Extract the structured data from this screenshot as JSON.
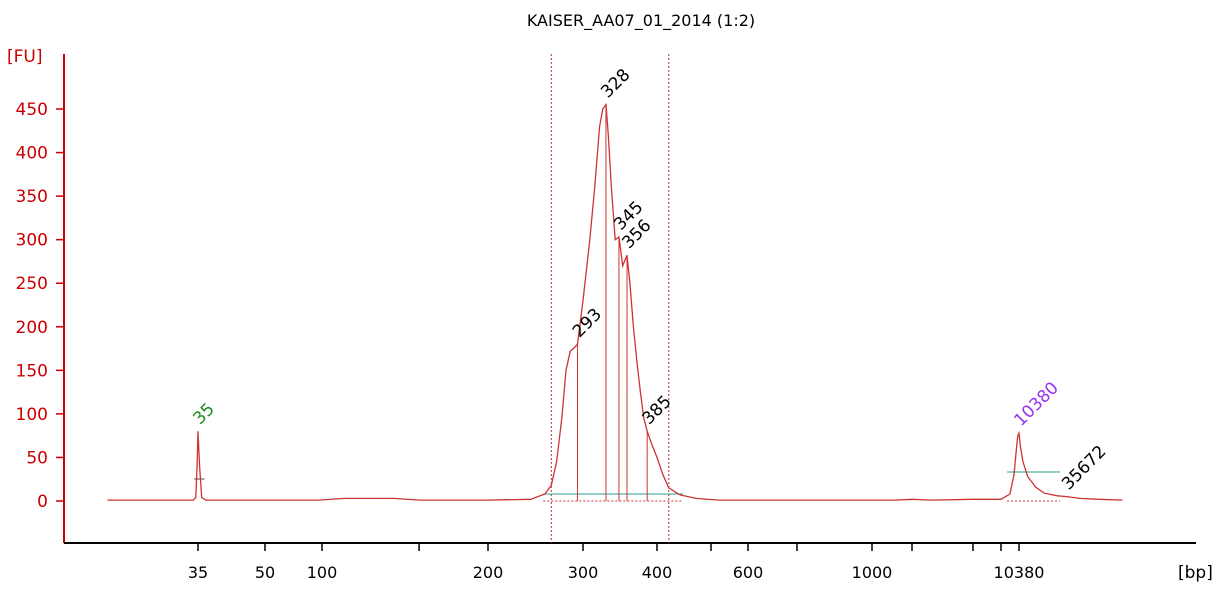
{
  "chart_data": {
    "type": "line",
    "title": "KAISER_AA07_01_2014 (1:2)",
    "ylabel": "[FU]",
    "xlabel": "[bp]",
    "ylim": [
      -45,
      480
    ],
    "yticks": [
      0,
      50,
      100,
      150,
      200,
      250,
      300,
      350,
      400,
      450
    ],
    "xticks": [
      {
        "label": "35",
        "value": 35
      },
      {
        "label": "50",
        "value": 50
      },
      {
        "label": "100",
        "value": 100
      },
      {
        "label": "",
        "value": 150
      },
      {
        "label": "200",
        "value": 200
      },
      {
        "label": "300",
        "value": 300
      },
      {
        "label": "400",
        "value": 400
      },
      {
        "label": "",
        "value": 500
      },
      {
        "label": "600",
        "value": 600
      },
      {
        "label": "",
        "value": 700
      },
      {
        "label": "1000",
        "value": 1000
      },
      {
        "label": "",
        "value": 2000
      },
      {
        "label": "",
        "value": 4000
      },
      {
        "label": "",
        "value": 7000
      },
      {
        "label": "10380",
        "value": 10380
      }
    ],
    "series": [
      {
        "color": "#cc3333",
        "points": [
          [
            15,
            1
          ],
          [
            30,
            1
          ],
          [
            33.5,
            1
          ],
          [
            34.3,
            4
          ],
          [
            34.7,
            40
          ],
          [
            35,
            80
          ],
          [
            35.3,
            40
          ],
          [
            35.7,
            4
          ],
          [
            36.5,
            1
          ],
          [
            60,
            1
          ],
          [
            95,
            1
          ],
          [
            110,
            3
          ],
          [
            135,
            3
          ],
          [
            150,
            1
          ],
          [
            200,
            1
          ],
          [
            240,
            2
          ],
          [
            255,
            8
          ],
          [
            262,
            18
          ],
          [
            268,
            45
          ],
          [
            274,
            95
          ],
          [
            279,
            150
          ],
          [
            284,
            172
          ],
          [
            288,
            175
          ],
          [
            293,
            180
          ],
          [
            300,
            230
          ],
          [
            308,
            300
          ],
          [
            314,
            360
          ],
          [
            320,
            430
          ],
          [
            324,
            450
          ],
          [
            328,
            455
          ],
          [
            331,
            420
          ],
          [
            335,
            360
          ],
          [
            340,
            300
          ],
          [
            345,
            303
          ],
          [
            350,
            270
          ],
          [
            356,
            282
          ],
          [
            360,
            250
          ],
          [
            365,
            200
          ],
          [
            370,
            160
          ],
          [
            375,
            125
          ],
          [
            380,
            95
          ],
          [
            385,
            80
          ],
          [
            392,
            65
          ],
          [
            400,
            50
          ],
          [
            410,
            30
          ],
          [
            420,
            15
          ],
          [
            440,
            7
          ],
          [
            470,
            3
          ],
          [
            520,
            1
          ],
          [
            600,
            1
          ],
          [
            1000,
            1
          ],
          [
            1500,
            1
          ],
          [
            2000,
            2
          ],
          [
            2500,
            1
          ],
          [
            4000,
            2
          ],
          [
            7000,
            2
          ],
          [
            8500,
            8
          ],
          [
            9300,
            30
          ],
          [
            9800,
            60
          ],
          [
            10100,
            75
          ],
          [
            10380,
            78
          ],
          [
            10800,
            62
          ],
          [
            11500,
            45
          ],
          [
            13000,
            28
          ],
          [
            16000,
            16
          ],
          [
            20000,
            9
          ],
          [
            28000,
            6
          ],
          [
            35672,
            5
          ],
          [
            50000,
            3
          ],
          [
            80000,
            2
          ],
          [
            150000,
            1
          ]
        ]
      }
    ],
    "peaks": [
      {
        "label": "35",
        "x": 35,
        "y": 80,
        "color": "#1a8c1a"
      },
      {
        "label": "293",
        "x": 293,
        "y": 180,
        "color": "#000000"
      },
      {
        "label": "328",
        "x": 328,
        "y": 455,
        "color": "#000000"
      },
      {
        "label": "345",
        "x": 345,
        "y": 303,
        "color": "#000000"
      },
      {
        "label": "356",
        "x": 356,
        "y": 282,
        "color": "#000000"
      },
      {
        "label": "385",
        "x": 385,
        "y": 80,
        "color": "#000000"
      },
      {
        "label": "10380",
        "x": 10380,
        "y": 78,
        "color": "#9933ee"
      },
      {
        "label": "35672",
        "x": 35672,
        "y": 5,
        "color": "#000000"
      }
    ],
    "region": {
      "from": 262,
      "to": 420
    },
    "grid": false
  }
}
